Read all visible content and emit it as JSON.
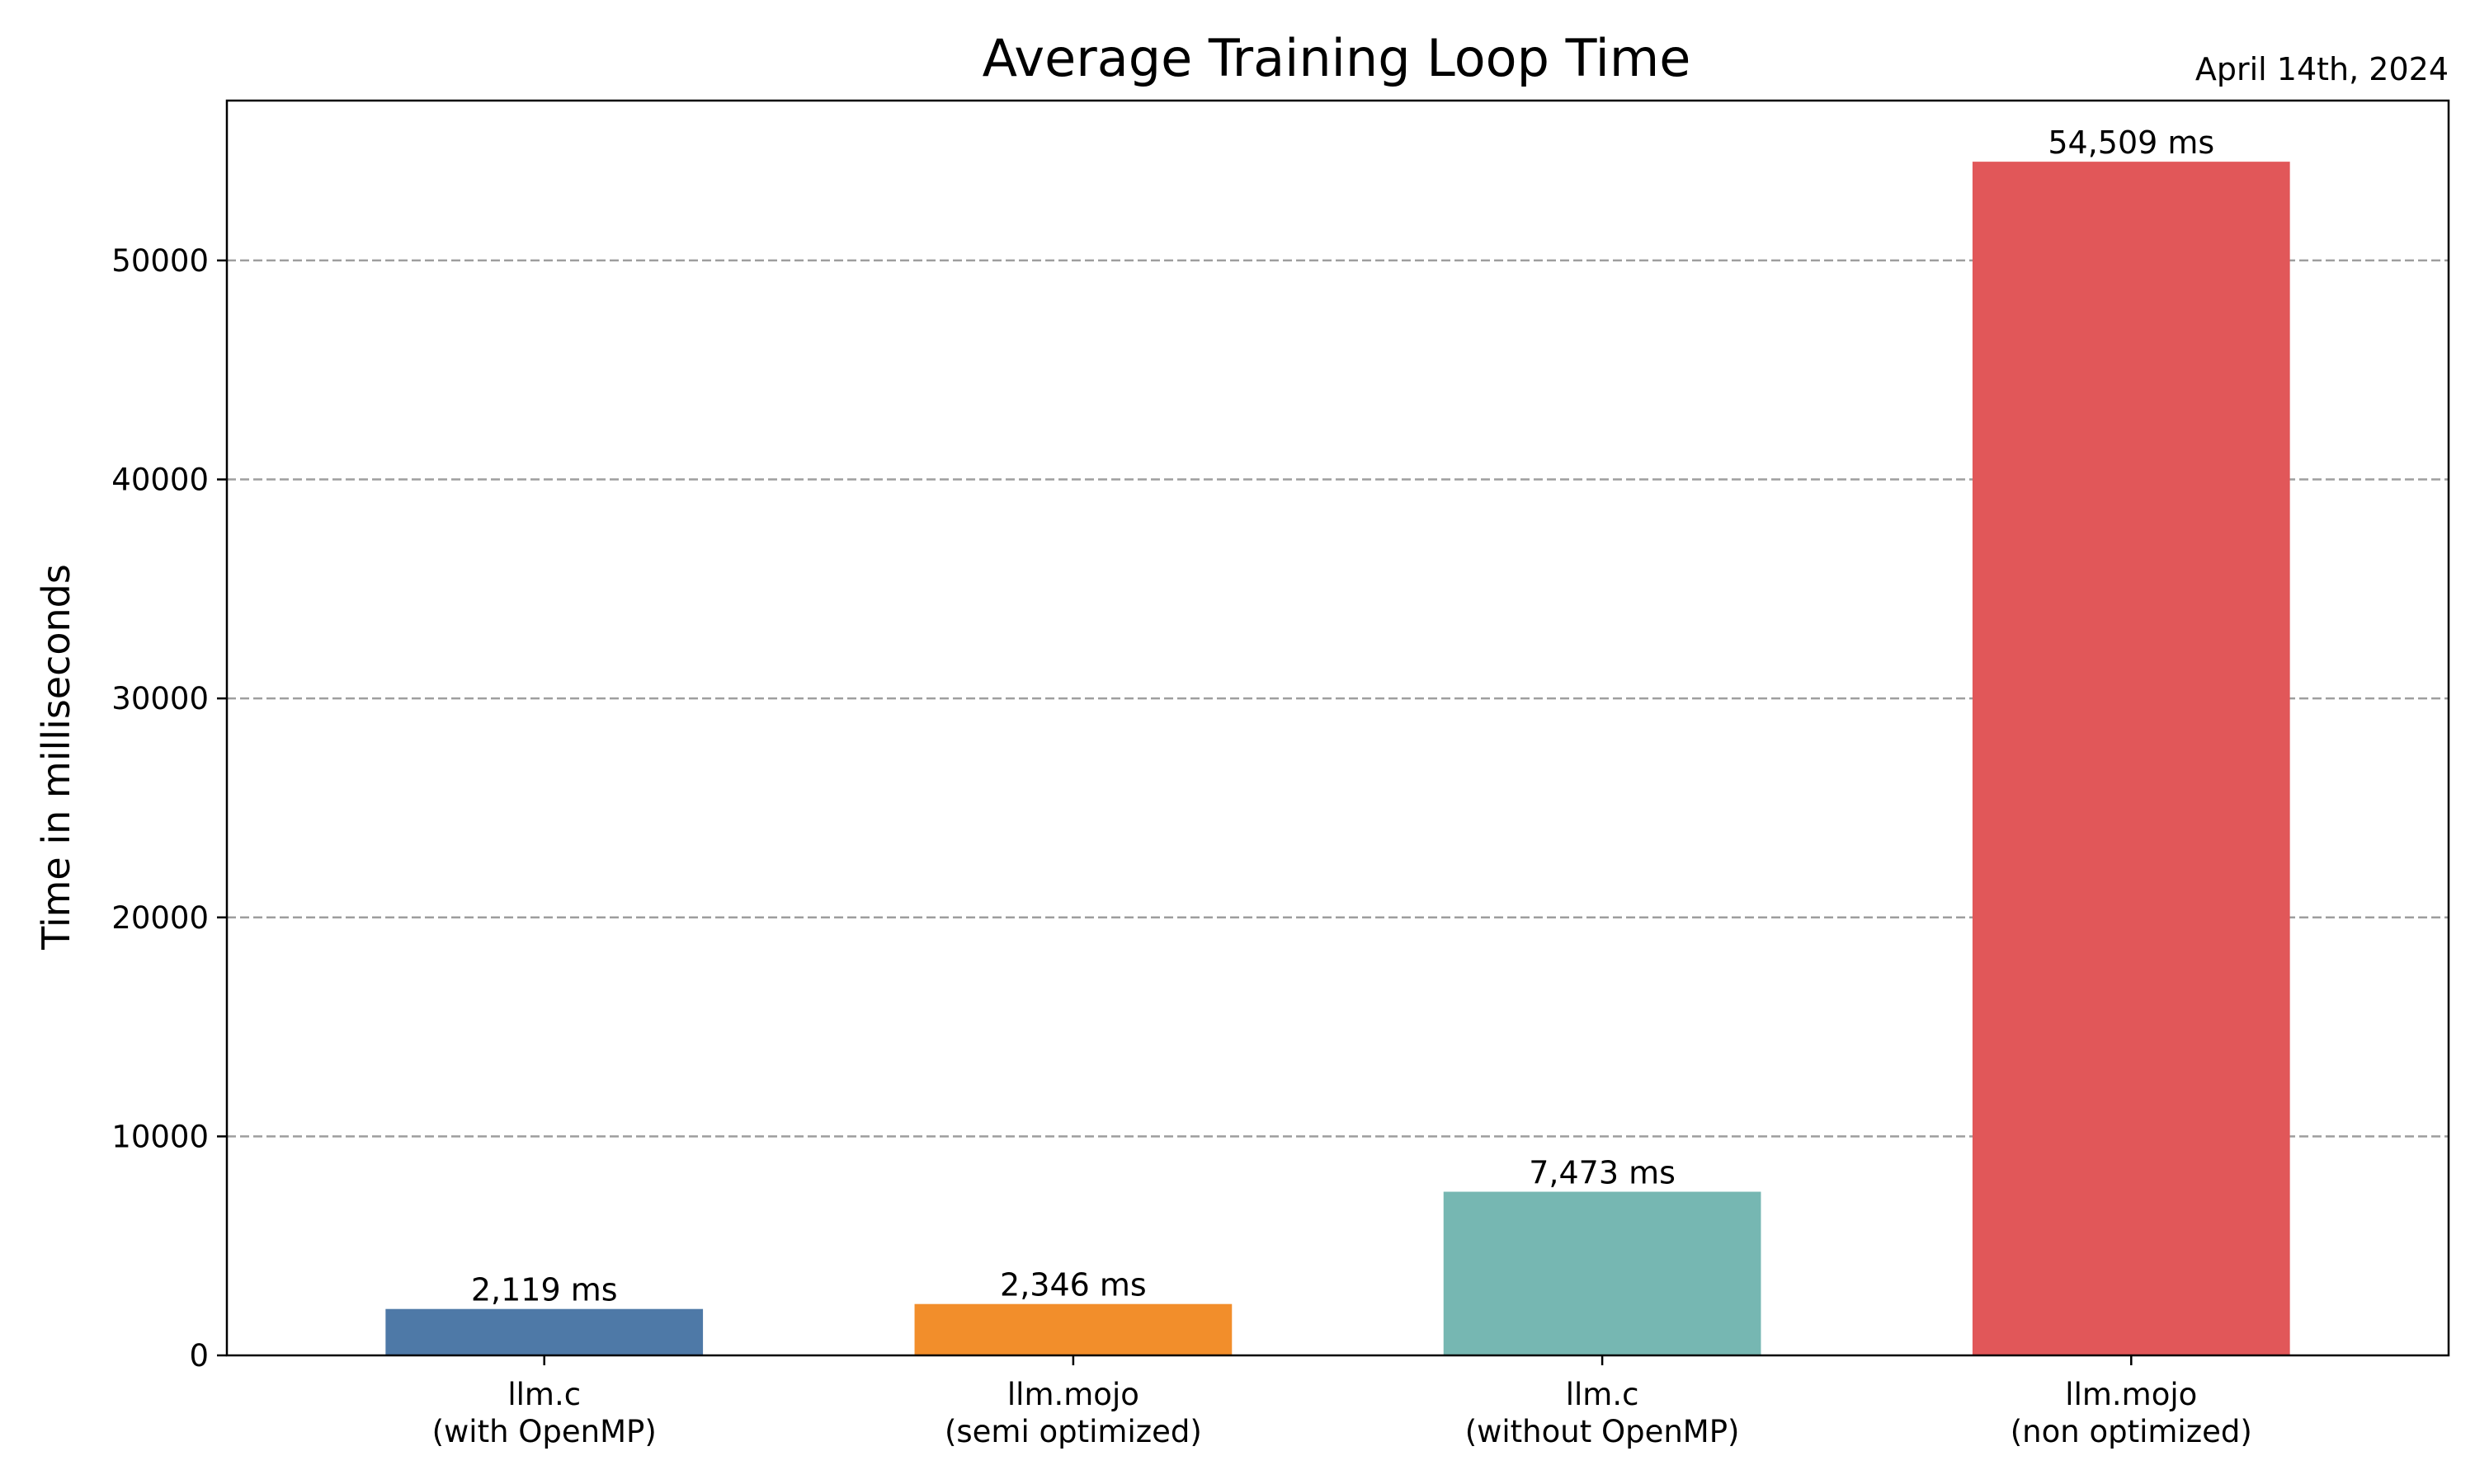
{
  "chart_data": {
    "type": "bar",
    "title": "Average Training Loop Time",
    "subtitle": "April 14th, 2024",
    "ylabel": "Time in milliseconds",
    "xlabel": "",
    "ylim": [
      0,
      57300
    ],
    "yticks": [
      0,
      10000,
      20000,
      30000,
      40000,
      50000
    ],
    "grid": "y-dashed",
    "legend": "none",
    "categories": [
      [
        "llm.c",
        "(with OpenMP)"
      ],
      [
        "llm.mojo",
        "(semi optimized)"
      ],
      [
        "llm.c",
        "(without OpenMP)"
      ],
      [
        "llm.mojo",
        "(non optimized)"
      ]
    ],
    "values": [
      2119,
      2346,
      7473,
      54509
    ],
    "data_labels": [
      "2,119 ms",
      "2,346 ms",
      "7,473 ms",
      "54,509 ms"
    ],
    "colors": [
      "#4e79a7",
      "#f28e2b",
      "#76b7b2",
      "#e15759"
    ]
  }
}
